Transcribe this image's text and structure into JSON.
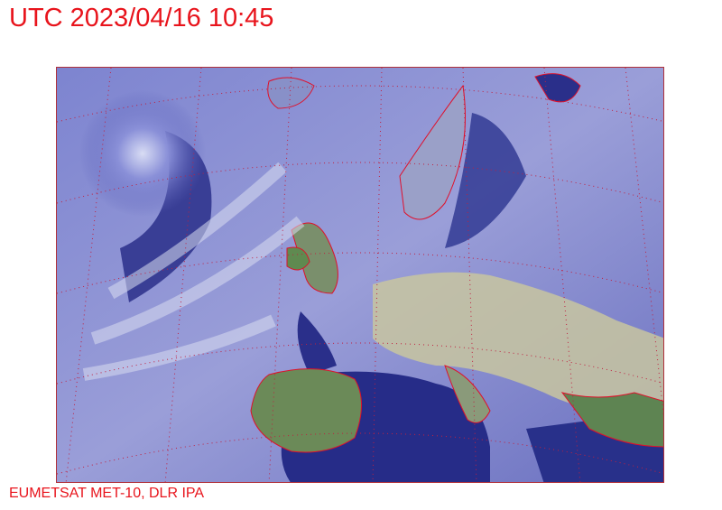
{
  "header": {
    "title": "UTC 2023/04/16 10:45"
  },
  "footer": {
    "credit": "EUMETSAT MET-10, DLR IPA"
  },
  "map": {
    "type": "satellite-image",
    "region": "Europe",
    "overlays": [
      "coastlines",
      "lat-lon-grid"
    ],
    "colors": {
      "coastline": "#e0102a",
      "grid": "#c02040",
      "sea": "#2a2f8a",
      "cloud": "#c8cce8",
      "land": "#6a8a5a"
    }
  }
}
